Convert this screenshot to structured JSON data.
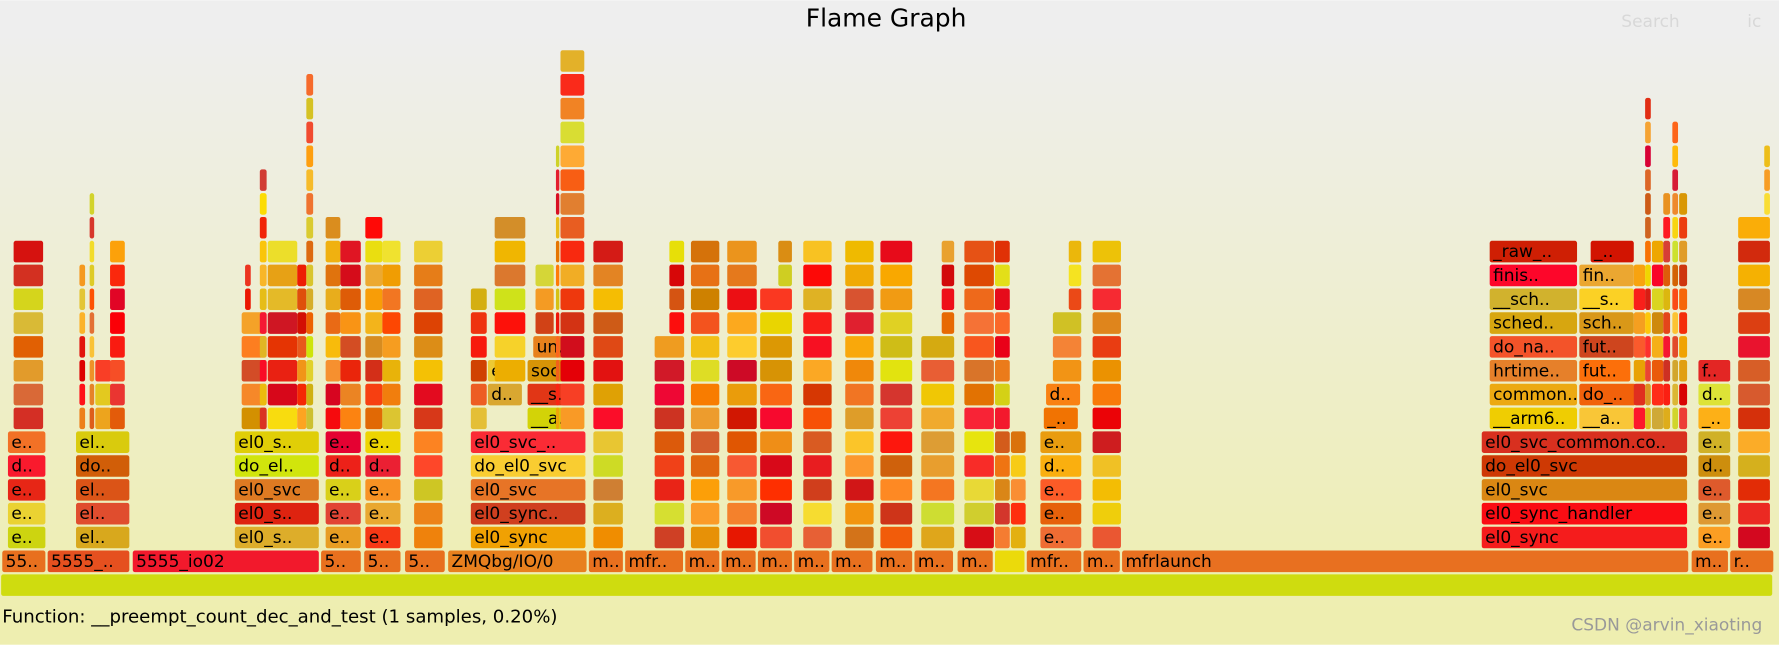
{
  "title": "Flame Graph",
  "search": "Search",
  "ignorecase": "ic",
  "details": "Function: __preempt_count_dec_and_test (1 samples, 0.20%)",
  "watermark": "CSDN @arvin_xiaoting",
  "frames": [
    {
      "label": "55.."
    },
    {
      "label": "5555_.."
    },
    {
      "label": "5555_io02"
    },
    {
      "label": "5.."
    },
    {
      "label": "5.."
    },
    {
      "label": "5.."
    },
    {
      "label": "ZMQbg/IO/0"
    },
    {
      "label": "m.."
    },
    {
      "label": "mfr.."
    },
    {
      "label": "m.."
    },
    {
      "label": "m.."
    },
    {
      "label": "m.."
    },
    {
      "label": "m.."
    },
    {
      "label": "m.."
    },
    {
      "label": "m.."
    },
    {
      "label": "m.."
    },
    {
      "label": "m.."
    },
    {
      "label": "mfr.."
    },
    {
      "label": "m.."
    },
    {
      "label": "mfrlaunch"
    },
    {
      "label": "m.."
    },
    {
      "label": "r.."
    },
    {
      "label": "e.."
    },
    {
      "label": "el.."
    },
    {
      "label": "el0_s.."
    },
    {
      "label": "e.."
    },
    {
      "label": "e.."
    },
    {
      "label": "el0_sync"
    },
    {
      "label": "e.."
    },
    {
      "label": "el0_sync"
    },
    {
      "label": "e.."
    },
    {
      "label": "e.."
    },
    {
      "label": "el.."
    },
    {
      "label": "el0_s.."
    },
    {
      "label": "e.."
    },
    {
      "label": "e.."
    },
    {
      "label": "el0_sync.."
    },
    {
      "label": "e.."
    },
    {
      "label": "el0_sync_handler"
    },
    {
      "label": "e.."
    },
    {
      "label": "e.."
    },
    {
      "label": "el.."
    },
    {
      "label": "el0_svc"
    },
    {
      "label": "e.."
    },
    {
      "label": "e.."
    },
    {
      "label": "el0_svc"
    },
    {
      "label": "e.."
    },
    {
      "label": "el0_svc"
    },
    {
      "label": "e.."
    },
    {
      "label": "d.."
    },
    {
      "label": "do.."
    },
    {
      "label": "do_el.."
    },
    {
      "label": "d.."
    },
    {
      "label": "d.."
    },
    {
      "label": "do_el0_svc"
    },
    {
      "label": "d.."
    },
    {
      "label": "do_el0_svc"
    },
    {
      "label": "d.."
    },
    {
      "label": "e.."
    },
    {
      "label": "el.."
    },
    {
      "label": "el0_s.."
    },
    {
      "label": "e.."
    },
    {
      "label": "e.."
    },
    {
      "label": "el0_svc_.."
    },
    {
      "label": "e.."
    },
    {
      "label": "el0_svc_common.co.."
    },
    {
      "label": "e.."
    },
    {
      "label": "_.."
    },
    {
      "label": "__a.."
    },
    {
      "label": "__arm6.."
    },
    {
      "label": "__a.."
    },
    {
      "label": "_.."
    },
    {
      "label": "d.."
    },
    {
      "label": "__s.."
    },
    {
      "label": "d.."
    },
    {
      "label": "common.."
    },
    {
      "label": "do_.."
    },
    {
      "label": "d.."
    },
    {
      "label": "e.."
    },
    {
      "label": "soc.."
    },
    {
      "label": "hrtime.."
    },
    {
      "label": "fut.."
    },
    {
      "label": "f.."
    },
    {
      "label": "un.."
    },
    {
      "label": "do_na.."
    },
    {
      "label": "fut.."
    },
    {
      "label": "sched.."
    },
    {
      "label": "sch.."
    },
    {
      "label": "__sch.."
    },
    {
      "label": "__s.."
    },
    {
      "label": "finis.."
    },
    {
      "label": "fin.."
    },
    {
      "label": "_raw_.."
    },
    {
      "label": "_.."
    }
  ]
}
